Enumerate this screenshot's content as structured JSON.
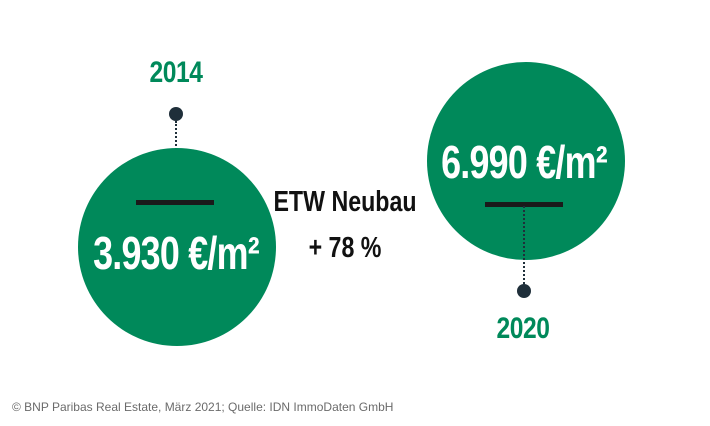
{
  "chart_data": {
    "type": "comparison",
    "title": "ETW Neubau",
    "change": "+ 78 %",
    "points": [
      {
        "year": "2014",
        "value": 3930,
        "label": "3.930 €/m²"
      },
      {
        "year": "2020",
        "value": 6990,
        "label": "6.990 €/m²"
      }
    ],
    "unit": "€/m²"
  },
  "colors": {
    "accent": "#00895a",
    "marker": "#1f2f3a",
    "text": "#111111"
  },
  "source": "© BNP Paribas Real Estate, März 2021; Quelle: IDN ImmoDaten GmbH"
}
